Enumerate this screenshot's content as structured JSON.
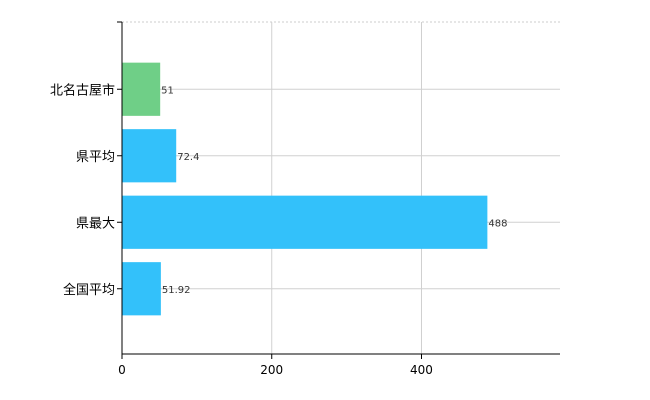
{
  "chart_data": {
    "type": "bar",
    "orientation": "horizontal",
    "title": "",
    "xlabel": "",
    "ylabel": "",
    "categories": [
      "北名古屋市",
      "県平均",
      "県最大",
      "全国平均"
    ],
    "values": [
      51,
      72.4,
      488,
      51.92
    ],
    "value_labels": [
      "51",
      "72.4",
      "488",
      "51.92"
    ],
    "bar_colors": [
      "#6fcf87",
      "#33c1fa",
      "#33c1fa",
      "#33c1fa"
    ],
    "xlim": [
      0,
      585
    ],
    "xticks": [
      0,
      200,
      400
    ],
    "xtick_labels": [
      "0",
      "200",
      "400"
    ],
    "grid": true,
    "legend": "none"
  }
}
